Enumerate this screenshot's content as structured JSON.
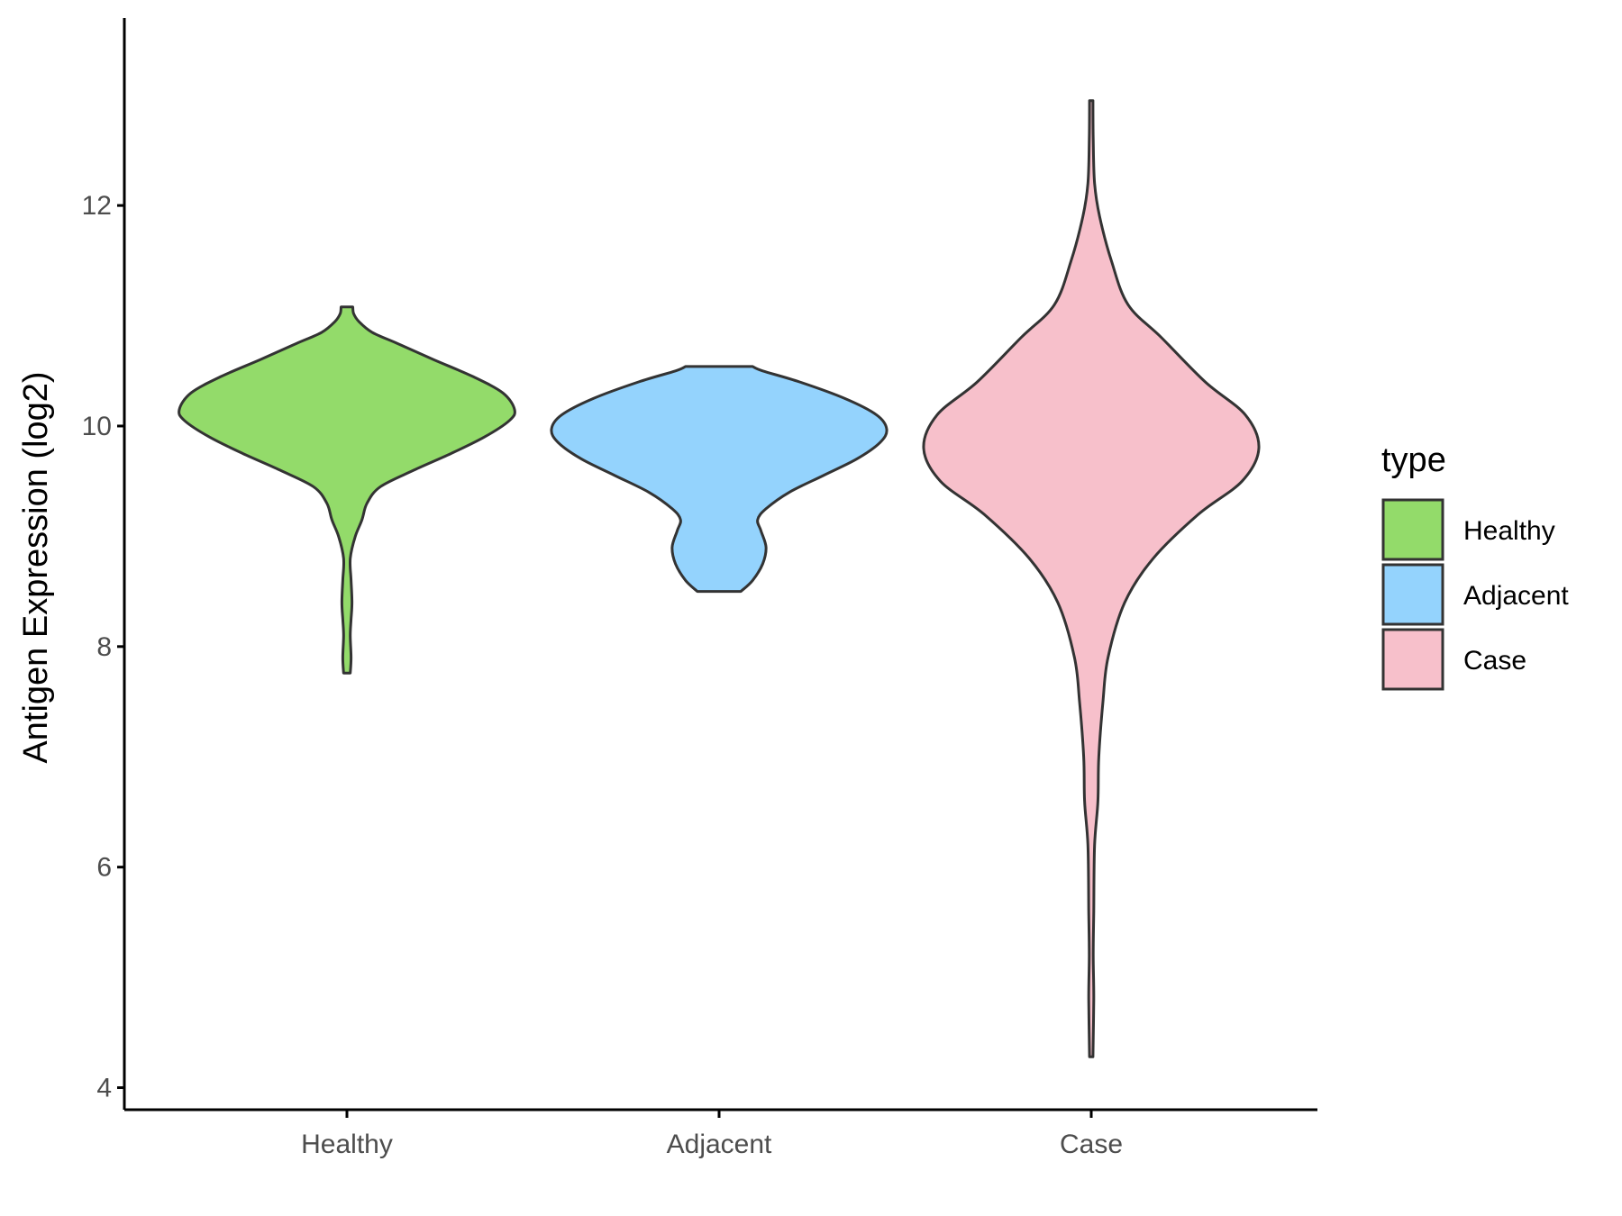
{
  "chart_data": {
    "type": "violin",
    "title": "",
    "xlabel": "",
    "ylabel": "Antigen Expression (log2)",
    "ylim": [
      3.8,
      13.7
    ],
    "yticks": [
      4,
      6,
      8,
      10,
      12
    ],
    "categories": [
      "Healthy",
      "Adjacent",
      "Case"
    ],
    "grid": false,
    "legend": {
      "title": "type",
      "position": "right",
      "entries": [
        {
          "label": "Healthy",
          "color": "#93DB6A"
        },
        {
          "label": "Adjacent",
          "color": "#94D3FD"
        },
        {
          "label": "Case",
          "color": "#F7C0CB"
        }
      ]
    },
    "series": [
      {
        "name": "Healthy",
        "color": "#93DB6A",
        "min": 7.76,
        "max": 11.08,
        "density": [
          [
            7.76,
            0.02
          ],
          [
            7.9,
            0.025
          ],
          [
            8.1,
            0.02
          ],
          [
            8.25,
            0.025
          ],
          [
            8.4,
            0.03
          ],
          [
            8.6,
            0.025
          ],
          [
            8.8,
            0.02
          ],
          [
            9.0,
            0.05
          ],
          [
            9.15,
            0.09
          ],
          [
            9.3,
            0.12
          ],
          [
            9.45,
            0.2
          ],
          [
            9.6,
            0.4
          ],
          [
            9.75,
            0.62
          ],
          [
            9.9,
            0.82
          ],
          [
            10.05,
            0.97
          ],
          [
            10.15,
            1.0
          ],
          [
            10.3,
            0.93
          ],
          [
            10.45,
            0.75
          ],
          [
            10.6,
            0.52
          ],
          [
            10.75,
            0.3
          ],
          [
            10.85,
            0.15
          ],
          [
            10.95,
            0.07
          ],
          [
            11.02,
            0.04
          ],
          [
            11.08,
            0.035
          ]
        ]
      },
      {
        "name": "Adjacent",
        "color": "#94D3FD",
        "min": 8.5,
        "max": 10.54,
        "density": [
          [
            8.5,
            0.13
          ],
          [
            8.6,
            0.2
          ],
          [
            8.75,
            0.26
          ],
          [
            8.9,
            0.28
          ],
          [
            9.05,
            0.25
          ],
          [
            9.15,
            0.23
          ],
          [
            9.25,
            0.28
          ],
          [
            9.4,
            0.42
          ],
          [
            9.55,
            0.62
          ],
          [
            9.7,
            0.82
          ],
          [
            9.85,
            0.96
          ],
          [
            9.97,
            1.0
          ],
          [
            10.1,
            0.94
          ],
          [
            10.25,
            0.75
          ],
          [
            10.4,
            0.48
          ],
          [
            10.5,
            0.26
          ],
          [
            10.54,
            0.2
          ]
        ]
      },
      {
        "name": "Case",
        "color": "#F7C0CB",
        "min": 4.28,
        "max": 12.95,
        "density": [
          [
            4.28,
            0.01
          ],
          [
            4.8,
            0.015
          ],
          [
            5.2,
            0.012
          ],
          [
            5.6,
            0.015
          ],
          [
            6.2,
            0.02
          ],
          [
            6.6,
            0.04
          ],
          [
            7.0,
            0.045
          ],
          [
            7.5,
            0.07
          ],
          [
            7.9,
            0.1
          ],
          [
            8.4,
            0.2
          ],
          [
            8.8,
            0.37
          ],
          [
            9.2,
            0.64
          ],
          [
            9.5,
            0.9
          ],
          [
            9.8,
            1.0
          ],
          [
            10.1,
            0.92
          ],
          [
            10.4,
            0.68
          ],
          [
            10.8,
            0.42
          ],
          [
            11.1,
            0.22
          ],
          [
            11.5,
            0.12
          ],
          [
            11.9,
            0.05
          ],
          [
            12.2,
            0.02
          ],
          [
            12.6,
            0.012
          ],
          [
            12.95,
            0.01
          ]
        ]
      }
    ]
  }
}
